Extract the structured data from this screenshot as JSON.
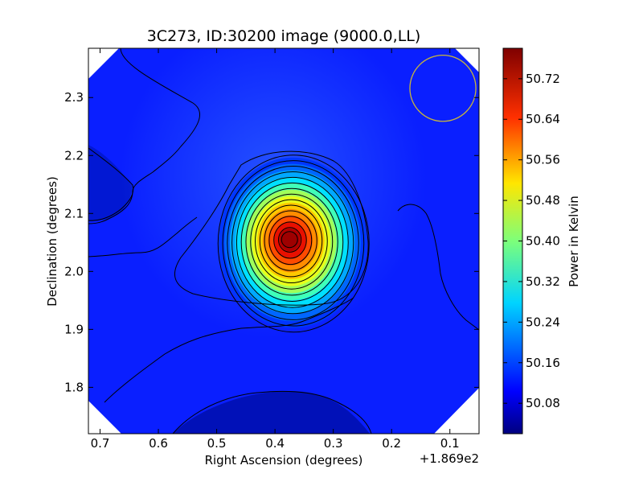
{
  "chart_data": {
    "type": "heatmap",
    "title": "3C273, ID:30200 image (9000.0,LL)",
    "xlabel": "Right Ascension (degrees)",
    "ylabel": "Declination (degrees)",
    "x_offset_label": "+1.869e2",
    "x_ticks": [
      {
        "value": 0.7,
        "label": "0.7"
      },
      {
        "value": 0.6,
        "label": "0.6"
      },
      {
        "value": 0.5,
        "label": "0.5"
      },
      {
        "value": 0.4,
        "label": "0.4"
      },
      {
        "value": 0.3,
        "label": "0.3"
      },
      {
        "value": 0.2,
        "label": "0.2"
      },
      {
        "value": 0.1,
        "label": "0.1"
      }
    ],
    "y_ticks": [
      {
        "value": 2.3,
        "label": "2.3"
      },
      {
        "value": 2.2,
        "label": "2.2"
      },
      {
        "value": 2.1,
        "label": "2.1"
      },
      {
        "value": 2.0,
        "label": "2.0"
      },
      {
        "value": 1.9,
        "label": "1.9"
      },
      {
        "value": 1.8,
        "label": "1.8"
      }
    ],
    "xlim": [
      0.72,
      0.05
    ],
    "ylim": [
      1.72,
      2.385
    ],
    "colorbar": {
      "label": "Power in Kelvin",
      "range": [
        50.02,
        50.78
      ],
      "colormap": "jet",
      "ticks": [
        {
          "value": 50.08,
          "label": "50.08"
        },
        {
          "value": 50.16,
          "label": "50.16"
        },
        {
          "value": 50.24,
          "label": "50.24"
        },
        {
          "value": 50.32,
          "label": "50.32"
        },
        {
          "value": 50.4,
          "label": "50.40"
        },
        {
          "value": 50.48,
          "label": "50.48"
        },
        {
          "value": 50.56,
          "label": "50.56"
        },
        {
          "value": 50.64,
          "label": "50.64"
        },
        {
          "value": 50.72,
          "label": "50.72"
        }
      ]
    },
    "peak": {
      "ra": 0.375,
      "dec": 2.055,
      "value": 50.76
    },
    "beam_circle": {
      "ra": 0.112,
      "dec": 2.316,
      "radius_deg": 0.057,
      "color": "#c8b53a"
    },
    "contour_color": "#000000"
  }
}
